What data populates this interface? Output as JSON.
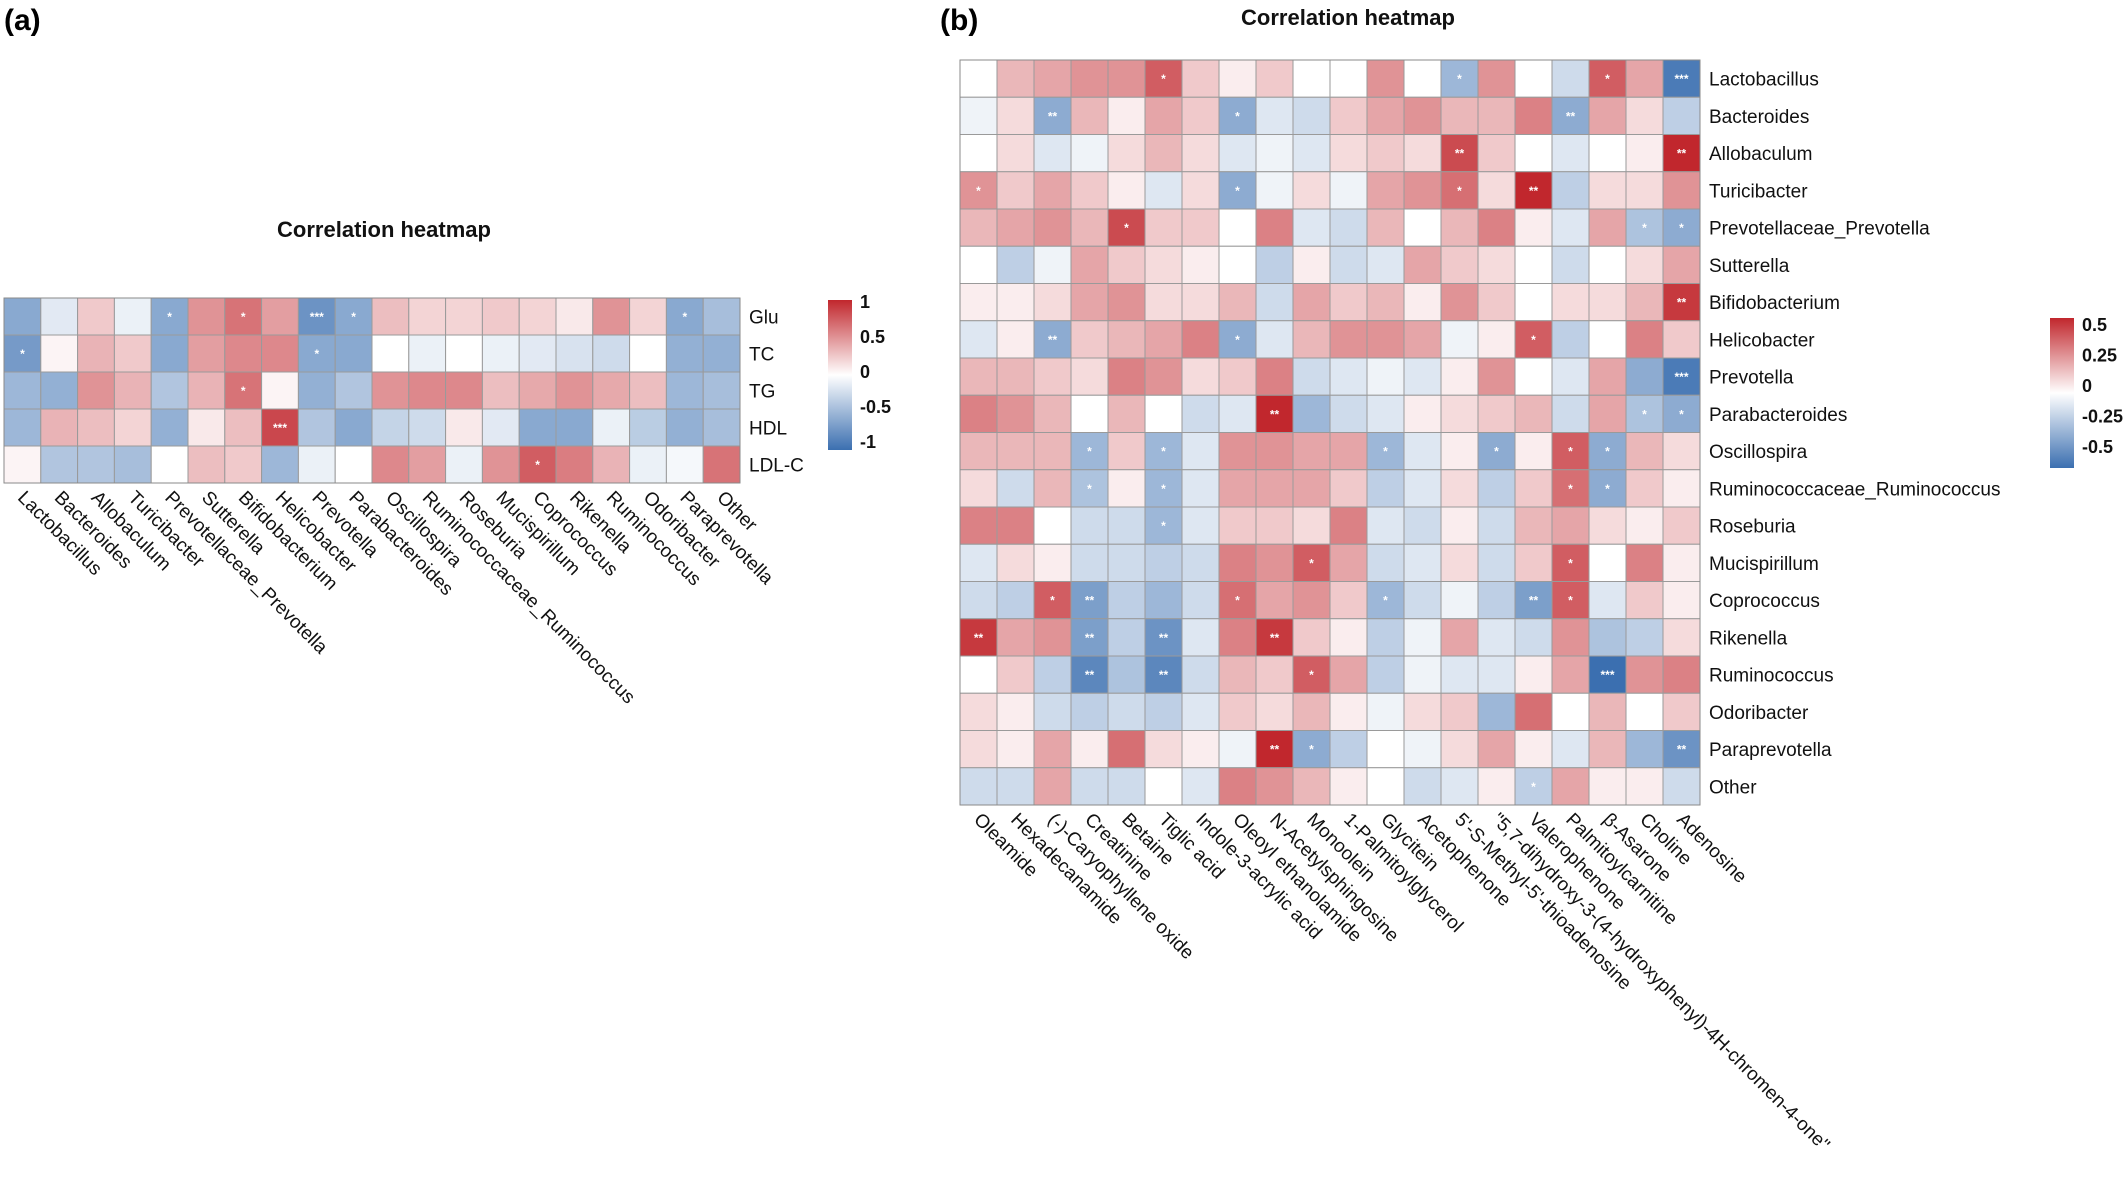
{
  "chart_data": [
    {
      "panel": "(a)",
      "type": "heatmap",
      "title": "Correlation heatmap",
      "rows": [
        "Glu",
        "TC",
        "TG",
        "HDL",
        "LDL-C"
      ],
      "columns": [
        "Lactobacillus",
        "Bacteroides",
        "Allobaculum",
        "Turicibacter",
        "Prevotellaceae_Prevotella",
        "Sutterella",
        "Bifidobacterium",
        "Helicobacter",
        "Prevotella",
        "Parabacteroides",
        "Oscillospira",
        "Ruminococcaceae_Ruminococcus",
        "Roseburia",
        "Mucispirillum",
        "Coprococcus",
        "Rikenella",
        "Ruminococcus",
        "Odoribacter",
        "Paraprevotella",
        "Other"
      ],
      "values": [
        [
          -0.6,
          -0.15,
          0.25,
          -0.1,
          -0.6,
          0.5,
          0.65,
          0.45,
          -0.75,
          -0.6,
          0.3,
          0.2,
          0.2,
          0.25,
          0.2,
          0.1,
          0.5,
          0.2,
          -0.6,
          -0.45
        ],
        [
          -0.7,
          0.05,
          0.35,
          0.25,
          -0.6,
          0.45,
          0.55,
          0.55,
          -0.6,
          -0.6,
          0.0,
          -0.1,
          0.0,
          -0.1,
          -0.15,
          -0.2,
          -0.25,
          0.0,
          -0.55,
          -0.55
        ],
        [
          -0.5,
          -0.55,
          0.5,
          0.35,
          -0.4,
          0.35,
          0.65,
          0.05,
          -0.55,
          -0.4,
          0.5,
          0.55,
          0.55,
          0.3,
          0.4,
          0.5,
          0.4,
          0.3,
          -0.5,
          -0.45
        ],
        [
          -0.5,
          0.35,
          0.3,
          0.2,
          -0.55,
          0.1,
          0.3,
          0.85,
          -0.4,
          -0.6,
          -0.3,
          -0.25,
          0.1,
          -0.15,
          -0.6,
          -0.6,
          -0.1,
          -0.35,
          -0.55,
          -0.45
        ],
        [
          0.05,
          -0.4,
          -0.4,
          -0.45,
          0.0,
          0.3,
          0.25,
          -0.5,
          -0.1,
          0.0,
          0.55,
          0.45,
          -0.1,
          0.5,
          0.75,
          0.6,
          0.35,
          -0.1,
          -0.05,
          0.65
        ]
      ],
      "significance": [
        [
          "",
          "",
          "",
          "",
          "*",
          "",
          "*",
          "",
          "***",
          "*",
          "",
          "",
          "",
          "",
          "",
          "",
          "",
          "",
          "*",
          ""
        ],
        [
          "*",
          "",
          "",
          "",
          "",
          "",
          "",
          "",
          "*",
          "",
          "",
          "",
          "",
          "",
          "",
          "",
          "",
          "",
          "",
          ""
        ],
        [
          "",
          "",
          "",
          "",
          "",
          "",
          "*",
          "",
          "",
          "",
          "",
          "",
          "",
          "",
          "",
          "",
          "",
          "",
          "",
          ""
        ],
        [
          "",
          "",
          "",
          "",
          "",
          "",
          "",
          "***",
          "",
          "",
          "",
          "",
          "",
          "",
          "",
          "",
          "",
          "",
          "",
          ""
        ],
        [
          "",
          "",
          "",
          "",
          "",
          "",
          "",
          "",
          "",
          "",
          "",
          "",
          "",
          "",
          "*",
          "",
          "",
          "",
          "",
          ""
        ]
      ],
      "color_scale": {
        "min": -1,
        "max": 1,
        "low_color": "#3b6fb0",
        "mid_color": "#ffffff",
        "high_color": "#c1272d"
      },
      "legend": {
        "placement": "right",
        "ticks": [
          "1",
          "0.5",
          "0",
          "-0.5",
          "-1"
        ],
        "tick_values": [
          1,
          0.5,
          0,
          -0.5,
          -1
        ]
      }
    },
    {
      "panel": "(b)",
      "type": "heatmap",
      "title": "Correlation heatmap",
      "rows": [
        "Lactobacillus",
        "Bacteroides",
        "Allobaculum",
        "Turicibacter",
        "Prevotellaceae_Prevotella",
        "Sutterella",
        "Bifidobacterium",
        "Helicobacter",
        "Prevotella",
        "Parabacteroides",
        "Oscillospira",
        "Ruminococcaceae_Ruminococcus",
        "Roseburia",
        "Mucispirillum",
        "Coprococcus",
        "Rikenella",
        "Ruminococcus",
        "Odoribacter",
        "Paraprevotella",
        "Other"
      ],
      "columns": [
        "Oleamide",
        "Hexadecanamide",
        "(-)-Caryophyllene oxide",
        "Creatinine",
        "Betaine",
        "Tiglic acid",
        "Indole-3-acrylic acid",
        "Oleoyl ethanolamide",
        "N-Acetylsphingosine",
        "Monoolein",
        "1-Palmitoylglycerol",
        "Glycitein",
        "Acetophenone",
        "5'-S-Methyl-5'-thioadenosine",
        "\"5,7-dihydroxy-3-(4-hydroxyphenyl)-4H-chromen-4-one\"",
        "Valerophenone",
        "Palmitoylcarnitine",
        "β-Asarone",
        "Choline",
        "Adenosine"
      ],
      "values": [
        [
          0.0,
          0.2,
          0.25,
          0.3,
          0.3,
          0.45,
          0.15,
          0.05,
          0.15,
          0.0,
          0.0,
          0.3,
          0.0,
          -0.3,
          0.3,
          0.0,
          -0.15,
          0.45,
          0.25,
          -0.55
        ],
        [
          -0.05,
          0.1,
          -0.35,
          0.2,
          0.05,
          0.25,
          0.15,
          -0.35,
          -0.1,
          -0.15,
          0.15,
          0.25,
          0.3,
          0.2,
          0.2,
          0.35,
          -0.35,
          0.25,
          0.1,
          -0.2
        ],
        [
          0.0,
          0.1,
          -0.1,
          -0.05,
          0.1,
          0.2,
          0.1,
          -0.1,
          -0.05,
          -0.1,
          0.1,
          0.15,
          0.1,
          0.5,
          0.15,
          0.0,
          -0.1,
          0.0,
          0.05,
          0.6
        ],
        [
          0.3,
          0.15,
          0.25,
          0.15,
          0.05,
          -0.1,
          0.1,
          -0.35,
          -0.05,
          0.1,
          -0.05,
          0.25,
          0.3,
          0.4,
          0.1,
          0.6,
          -0.2,
          0.1,
          0.1,
          0.3
        ],
        [
          0.2,
          0.25,
          0.3,
          0.2,
          0.5,
          0.15,
          0.15,
          0.0,
          0.35,
          -0.1,
          -0.15,
          0.2,
          0.0,
          0.2,
          0.35,
          0.05,
          -0.1,
          0.25,
          -0.25,
          -0.35
        ],
        [
          0.0,
          -0.2,
          -0.05,
          0.25,
          0.15,
          0.1,
          0.05,
          0.0,
          -0.2,
          0.05,
          -0.15,
          -0.1,
          0.25,
          0.15,
          0.1,
          0.0,
          -0.15,
          0.0,
          0.1,
          0.25
        ],
        [
          0.05,
          0.05,
          0.1,
          0.25,
          0.3,
          0.1,
          0.1,
          0.2,
          -0.15,
          0.25,
          0.15,
          0.2,
          0.05,
          0.3,
          0.15,
          0.0,
          0.1,
          0.1,
          0.2,
          0.55
        ],
        [
          -0.1,
          0.05,
          -0.35,
          0.15,
          0.2,
          0.25,
          0.35,
          -0.35,
          -0.1,
          0.2,
          0.3,
          0.3,
          0.25,
          -0.05,
          0.05,
          0.45,
          -0.2,
          0.0,
          0.35,
          0.15
        ],
        [
          0.2,
          0.2,
          0.15,
          0.1,
          0.35,
          0.3,
          0.1,
          0.15,
          0.35,
          -0.15,
          -0.1,
          -0.05,
          -0.1,
          0.05,
          0.3,
          0.0,
          -0.1,
          0.25,
          -0.35,
          -0.55
        ],
        [
          0.35,
          0.3,
          0.2,
          0.0,
          0.2,
          0.0,
          -0.15,
          -0.1,
          0.65,
          -0.3,
          -0.15,
          -0.1,
          0.05,
          0.1,
          0.15,
          0.2,
          -0.15,
          0.25,
          -0.25,
          -0.35
        ],
        [
          0.2,
          0.2,
          0.2,
          -0.3,
          0.15,
          -0.3,
          -0.1,
          0.3,
          0.3,
          0.25,
          0.25,
          -0.3,
          -0.1,
          0.05,
          -0.35,
          0.05,
          0.45,
          -0.35,
          0.2,
          0.1
        ],
        [
          0.1,
          -0.15,
          0.2,
          -0.25,
          0.05,
          -0.3,
          -0.1,
          0.25,
          0.25,
          0.25,
          0.15,
          -0.2,
          -0.1,
          0.1,
          -0.2,
          0.15,
          0.4,
          -0.35,
          0.15,
          0.05
        ],
        [
          0.35,
          0.35,
          0.0,
          -0.15,
          -0.15,
          -0.3,
          -0.1,
          0.15,
          0.15,
          0.1,
          0.35,
          -0.1,
          -0.15,
          0.05,
          -0.15,
          0.2,
          0.25,
          0.1,
          0.05,
          0.15
        ],
        [
          -0.1,
          0.1,
          0.05,
          -0.15,
          -0.15,
          -0.2,
          -0.15,
          0.35,
          0.3,
          0.45,
          0.25,
          -0.15,
          -0.1,
          0.1,
          -0.15,
          0.15,
          0.45,
          0.0,
          0.35,
          0.05
        ],
        [
          -0.15,
          -0.2,
          0.45,
          -0.4,
          -0.2,
          -0.3,
          -0.15,
          0.4,
          0.25,
          0.3,
          0.15,
          -0.3,
          -0.15,
          -0.05,
          -0.2,
          -0.4,
          0.45,
          -0.1,
          0.15,
          0.05
        ],
        [
          0.55,
          0.25,
          0.3,
          -0.4,
          -0.2,
          -0.45,
          -0.1,
          0.35,
          0.55,
          0.15,
          0.05,
          -0.2,
          -0.05,
          0.25,
          -0.1,
          -0.15,
          0.3,
          -0.25,
          -0.2,
          0.1
        ],
        [
          0.0,
          0.15,
          -0.2,
          -0.5,
          -0.25,
          -0.5,
          -0.15,
          0.2,
          0.15,
          0.45,
          0.25,
          -0.2,
          -0.05,
          -0.1,
          -0.1,
          0.05,
          0.25,
          -0.6,
          0.3,
          0.35
        ],
        [
          0.1,
          0.05,
          -0.15,
          -0.2,
          -0.15,
          -0.2,
          -0.1,
          0.15,
          0.1,
          0.2,
          0.05,
          -0.05,
          0.1,
          0.15,
          -0.3,
          0.4,
          0.0,
          0.2,
          0.0,
          0.15
        ],
        [
          0.1,
          0.05,
          0.25,
          0.05,
          0.4,
          0.1,
          0.05,
          -0.05,
          0.65,
          -0.35,
          -0.2,
          0.0,
          -0.05,
          0.1,
          0.25,
          0.05,
          -0.1,
          0.2,
          -0.3,
          -0.45
        ],
        [
          -0.15,
          -0.15,
          0.25,
          -0.15,
          -0.15,
          0.0,
          -0.1,
          0.35,
          0.3,
          0.2,
          0.05,
          0.0,
          -0.15,
          -0.1,
          0.05,
          -0.2,
          0.25,
          0.05,
          0.05,
          -0.15
        ]
      ],
      "significance": [
        [
          "",
          "",
          "",
          "",
          "",
          "*",
          "",
          "",
          "",
          "",
          "",
          "",
          "",
          "*",
          "",
          "",
          "",
          "*",
          "",
          "***"
        ],
        [
          "",
          "",
          "**",
          "",
          "",
          "",
          "",
          "*",
          "",
          "",
          "",
          "",
          "",
          "",
          "",
          "",
          "**",
          "",
          "",
          ""
        ],
        [
          "",
          "",
          "",
          "",
          "",
          "",
          "",
          "",
          "",
          "",
          "",
          "",
          "",
          "**",
          "",
          "",
          "",
          "",
          "",
          "**"
        ],
        [
          "*",
          "",
          "",
          "",
          "",
          "",
          "",
          "*",
          "",
          "",
          "",
          "",
          "",
          "*",
          "",
          "**",
          "",
          "",
          "",
          ""
        ],
        [
          "",
          "",
          "",
          "",
          "*",
          "",
          "",
          "",
          "",
          "",
          "",
          "",
          "",
          "",
          "",
          "",
          "",
          "",
          "*",
          "*"
        ],
        [
          "",
          "",
          "",
          "",
          "",
          "",
          "",
          "",
          "",
          "",
          "",
          "",
          "",
          "",
          "",
          "",
          "",
          "",
          "",
          ""
        ],
        [
          "",
          "",
          "",
          "",
          "",
          "",
          "",
          "",
          "",
          "",
          "",
          "",
          "",
          "",
          "",
          "",
          "",
          "",
          "",
          "**"
        ],
        [
          "",
          "",
          "**",
          "",
          "",
          "",
          "",
          "*",
          "",
          "",
          "",
          "",
          "",
          "",
          "",
          "*",
          "",
          "",
          "",
          ""
        ],
        [
          "",
          "",
          "",
          "",
          "",
          "",
          "",
          "",
          "",
          "",
          "",
          "",
          "",
          "",
          "",
          "",
          "",
          "",
          "",
          "***"
        ],
        [
          "",
          "",
          "",
          "",
          "",
          "",
          "",
          "",
          "**",
          "",
          "",
          "",
          "",
          "",
          "",
          "",
          "",
          "",
          "*",
          "*"
        ],
        [
          "",
          "",
          "",
          "*",
          "",
          "*",
          "",
          "",
          "",
          "",
          "",
          "*",
          "",
          "",
          "*",
          "",
          "*",
          "*",
          "",
          ""
        ],
        [
          "",
          "",
          "",
          "*",
          "",
          "*",
          "",
          "",
          "",
          "",
          "",
          "",
          "",
          "",
          "",
          "",
          "*",
          "*",
          "",
          ""
        ],
        [
          "",
          "",
          "",
          "",
          "",
          "*",
          "",
          "",
          "",
          "",
          "",
          "",
          "",
          "",
          "",
          "",
          "",
          "",
          "",
          ""
        ],
        [
          "",
          "",
          "",
          "",
          "",
          "",
          "",
          "",
          "",
          "*",
          "",
          "",
          "",
          "",
          "",
          "",
          "*",
          "",
          "",
          ""
        ],
        [
          "",
          "",
          "*",
          "**",
          "",
          "",
          "",
          "*",
          "",
          "",
          "",
          "*",
          "",
          "",
          "",
          "**",
          "*",
          "",
          "",
          ""
        ],
        [
          "**",
          "",
          "",
          "**",
          "",
          "**",
          "",
          "",
          "**",
          "",
          "",
          "",
          "",
          "",
          "",
          "",
          "",
          "",
          "",
          ""
        ],
        [
          "",
          "",
          "",
          "**",
          "",
          "**",
          "",
          "",
          "",
          "*",
          "",
          "",
          "",
          "",
          "",
          "",
          "",
          "***",
          "",
          ""
        ],
        [
          "",
          "",
          "",
          "",
          "",
          "",
          "",
          "",
          "",
          "",
          "",
          "",
          "",
          "",
          "",
          "",
          "",
          "",
          "",
          ""
        ],
        [
          "",
          "",
          "",
          "",
          "",
          "",
          "",
          "",
          "**",
          "*",
          "",
          "",
          "",
          "",
          "",
          "",
          "",
          "",
          "",
          "**"
        ],
        [
          "",
          "",
          "",
          "",
          "",
          "",
          "",
          "",
          "",
          "",
          "",
          "",
          "",
          "",
          "",
          "*",
          "",
          "",
          "",
          ""
        ]
      ],
      "color_scale": {
        "min": -0.6,
        "max": 0.6,
        "low_color": "#3b6fb0",
        "mid_color": "#ffffff",
        "high_color": "#c1272d"
      },
      "legend": {
        "placement": "right",
        "ticks": [
          "0.5",
          "0.25",
          "0",
          "-0.25",
          "-0.5"
        ],
        "tick_values": [
          0.5,
          0.25,
          0,
          -0.25,
          -0.5
        ]
      }
    }
  ]
}
